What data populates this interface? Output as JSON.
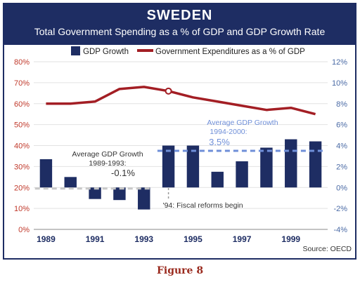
{
  "header": {
    "title": "SWEDEN",
    "subtitle": "Total Government Spending as a % of GDP and GDP Growth Rate"
  },
  "figure_caption": "Figure 8",
  "source": "Source: OECD",
  "colors": {
    "frame": "#1e2d63",
    "bar": "#1e2d63",
    "line": "#a31e24",
    "left_axis": "#c0392b",
    "right_axis": "#4a6aa5",
    "avg_1989_1993": "#c8c8c8",
    "avg_1994_2000": "#6f8fd8"
  },
  "chart_data": {
    "type": "bar",
    "title": "Total Government Spending as a % of GDP and GDP Growth Rate",
    "x": [
      1989,
      1990,
      1991,
      1992,
      1993,
      1994,
      1995,
      1996,
      1997,
      1998,
      1999,
      2000
    ],
    "x_tick_labels": [
      "1989",
      "1991",
      "1993",
      "1995",
      "1997",
      "1999"
    ],
    "y_left_range": [
      0,
      80
    ],
    "y_left_ticks": [
      "0%",
      "10%",
      "20%",
      "30%",
      "40%",
      "50%",
      "60%",
      "70%",
      "80%"
    ],
    "y_right_range": [
      -4,
      12
    ],
    "y_right_ticks": [
      "-4%",
      "-2%",
      "0%",
      "2%",
      "4%",
      "6%",
      "8%",
      "10%",
      "12%"
    ],
    "grid": true,
    "legend_position": "top",
    "series": [
      {
        "name": "GDP Growth",
        "type": "bar",
        "axis": "right",
        "values": [
          2.7,
          1.0,
          -1.1,
          -1.2,
          -2.1,
          4.0,
          4.0,
          1.5,
          2.5,
          3.8,
          4.6,
          4.4
        ]
      },
      {
        "name": "Government Expenditures as a % of GDP",
        "type": "line",
        "axis": "left",
        "values": [
          60,
          60,
          61,
          67,
          68,
          66,
          63,
          61,
          59,
          57,
          58,
          55
        ]
      }
    ],
    "annotations": {
      "avg_1989_1993": {
        "label_line1": "Average GDP Growth",
        "label_line2": "1989-1993:",
        "value_label": "-0.1%",
        "value": -0.1,
        "x_range": [
          1989,
          1993
        ]
      },
      "avg_1994_2000": {
        "label_line1": "Average GDP Growth",
        "label_line2": "1994-2000:",
        "value_label": "3.5%",
        "value": 3.5,
        "x_range": [
          1994,
          2000
        ]
      },
      "fiscal_reform": {
        "label": "'94: Fiscal reforms begin",
        "x": 1994
      }
    }
  }
}
